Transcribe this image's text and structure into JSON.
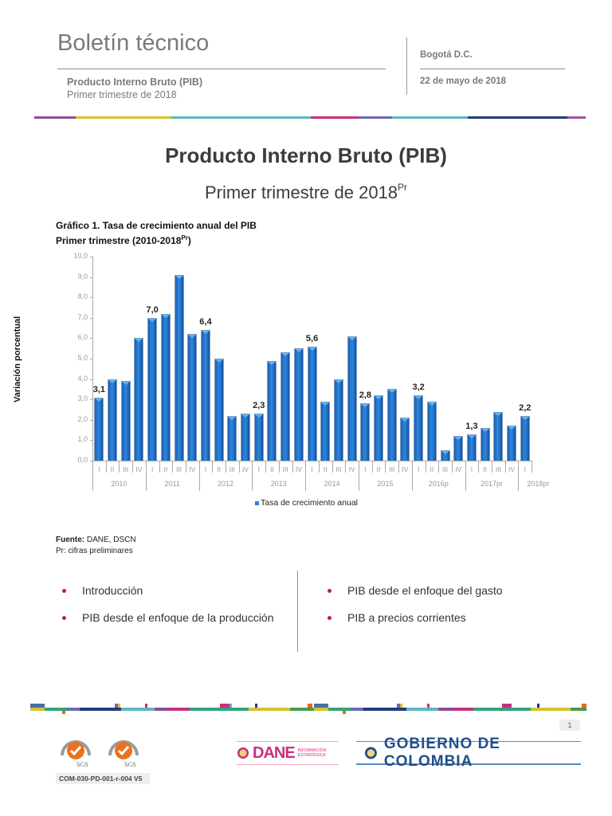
{
  "header": {
    "title": "Boletín técnico",
    "subtitle_bold": "Producto Interno Bruto (PIB)",
    "subtitle": "Primer trimestre de 2018",
    "city": "Bogotá D.C.",
    "date": "22 de mayo de 2018",
    "color_bar": [
      "#8e4c9a",
      "#d7c131",
      "#5cb9bd",
      "#c8307e",
      "#6a6ab5",
      "#5cb9bd",
      "#273a80",
      "#a054a0"
    ]
  },
  "main": {
    "title": "Producto Interno Bruto (PIB)",
    "subtitle": "Primer trimestre de 2018",
    "subtitle_sup": "Pr"
  },
  "chart_section": {
    "title_line1": "Gráfico 1. Tasa de crecimiento anual del PIB",
    "title_line2": "Primer trimestre (2010-2018",
    "title_line2_sup": "Pr",
    "title_line2_end": ")",
    "legend": "Tasa de crecimiento anual",
    "source_label": "Fuente:",
    "source_value": " DANE, DSCN",
    "note": "Pr: cifras preliminares"
  },
  "chart_data": {
    "type": "bar",
    "title": "Gráfico 1. Tasa de crecimiento anual del PIB — Primer trimestre (2010-2018Pr)",
    "xlabel": "",
    "ylabel": "Variación porcentual",
    "ylim": [
      0,
      10
    ],
    "yticks": [
      "0,0",
      "1,0",
      "2,0",
      "3,0",
      "4,0",
      "5,0",
      "6,0",
      "7,0",
      "8,0",
      "9,0",
      "10,0"
    ],
    "grid": false,
    "legend_position": "bottom",
    "years": [
      "2010",
      "2011",
      "2012",
      "2013",
      "2014",
      "2015",
      "2016p",
      "2017pr",
      "2018pr"
    ],
    "categories": [
      "2010-I",
      "2010-II",
      "2010-III",
      "2010-IV",
      "2011-I",
      "2011-II",
      "2011-III",
      "2011-IV",
      "2012-I",
      "2012-II",
      "2012-III",
      "2012-IV",
      "2013-I",
      "2013-II",
      "2013-III",
      "2013-IV",
      "2014-I",
      "2014-II",
      "2014-III",
      "2014-IV",
      "2015-I",
      "2015-II",
      "2015-III",
      "2015-IV",
      "2016p-I",
      "2016p-II",
      "2016p-III",
      "2016p-IV",
      "2017pr-I",
      "2017pr-II",
      "2017pr-III",
      "2017pr-IV",
      "2018pr-I"
    ],
    "quarters": [
      "I",
      "II",
      "III",
      "IV",
      "I",
      "II",
      "III",
      "IV",
      "I",
      "II",
      "III",
      "IV",
      "I",
      "II",
      "III",
      "IV",
      "I",
      "II",
      "III",
      "IV",
      "I",
      "II",
      "III",
      "IV",
      "I",
      "II",
      "III",
      "IV",
      "I",
      "II",
      "III",
      "IV",
      "I"
    ],
    "series": [
      {
        "name": "Tasa de crecimiento anual",
        "color": "#1f6ec8",
        "values": [
          3.1,
          4.0,
          3.9,
          6.0,
          7.0,
          7.2,
          9.1,
          6.2,
          6.4,
          5.0,
          2.2,
          2.3,
          2.3,
          4.9,
          5.3,
          5.5,
          5.6,
          2.9,
          4.0,
          6.1,
          2.8,
          3.2,
          3.5,
          2.1,
          3.2,
          2.9,
          0.5,
          1.2,
          1.3,
          1.6,
          2.4,
          1.7,
          2.2
        ],
        "data_labels": {
          "0": "3,1",
          "4": "7,0",
          "8": "6,4",
          "12": "2,3",
          "16": "5,6",
          "20": "2,8",
          "24": "3,2",
          "28": "1,3",
          "32": "2,2"
        }
      }
    ]
  },
  "topics": {
    "left": [
      "Introducción",
      "PIB desde el enfoque de la producción"
    ],
    "right": [
      "PIB desde el enfoque del gasto",
      "PIB a precios corrientes"
    ]
  },
  "footer": {
    "page_number": "1",
    "document_code": "COM-030-PD-001-r-004 V5",
    "cert_label": "SGS",
    "dane_name": "DANE",
    "dane_tagline_1": "INFORMACIÓN",
    "dane_tagline_2": "ESTRATÉGICA",
    "gov_name": "GOBIERNO DE COLOMBIA"
  }
}
